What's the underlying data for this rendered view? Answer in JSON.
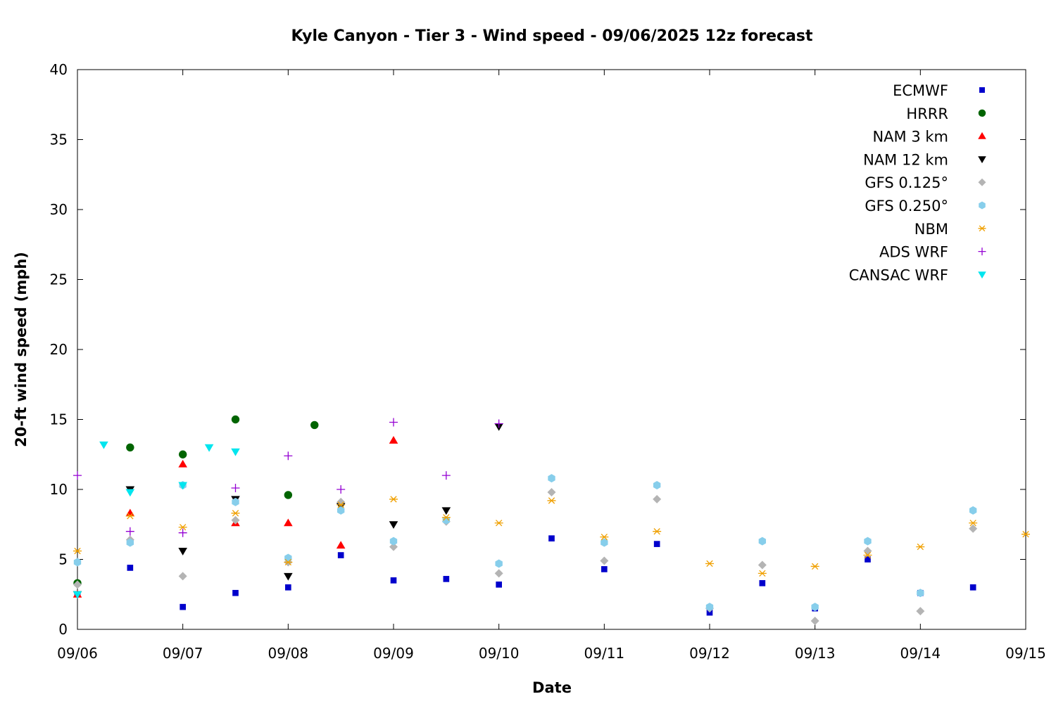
{
  "chart_data": {
    "type": "scatter",
    "title": "Kyle Canyon - Tier 3 - Wind speed - 09/06/2025 12z forecast",
    "xlabel": "Date",
    "ylabel": "20-ft wind speed (mph)",
    "x_unit": "days since 09/06 00:00",
    "xlim": [
      0,
      9
    ],
    "ylim": [
      0,
      40
    ],
    "xticks": [
      "09/06",
      "09/07",
      "09/08",
      "09/09",
      "09/10",
      "09/11",
      "09/12",
      "09/13",
      "09/14",
      "09/15"
    ],
    "yticks": [
      "0",
      "5",
      "10",
      "15",
      "20",
      "25",
      "30",
      "35",
      "40"
    ],
    "grid": false,
    "legend_position": "top-right",
    "series": [
      {
        "name": "ECMWF",
        "color": "#0000cc",
        "marker": "square",
        "x": [
          0.0,
          0.5,
          1.0,
          1.5,
          2.0,
          2.5,
          3.0,
          3.5,
          4.0,
          4.5,
          5.0,
          5.5,
          6.0,
          6.5,
          7.0,
          7.5,
          8.0,
          8.5
        ],
        "y": [
          2.5,
          4.4,
          1.6,
          2.6,
          3.0,
          5.3,
          3.5,
          3.6,
          3.2,
          6.5,
          4.3,
          6.1,
          1.2,
          3.3,
          1.5,
          5.0,
          2.6,
          3.0
        ]
      },
      {
        "name": "HRRR",
        "color": "#006400",
        "marker": "circle",
        "x": [
          0.0,
          0.5,
          1.0,
          1.5,
          2.0,
          2.25
        ],
        "y": [
          3.3,
          13.0,
          12.5,
          15.0,
          9.6,
          14.6
        ]
      },
      {
        "name": "NAM 3 km",
        "color": "#ff0000",
        "marker": "triangle-up",
        "x": [
          0.0,
          0.5,
          1.0,
          1.5,
          2.0,
          2.5,
          3.0
        ],
        "y": [
          2.5,
          8.3,
          11.8,
          7.6,
          7.6,
          6.0,
          13.5
        ]
      },
      {
        "name": "NAM 12 km",
        "color": "#000000",
        "marker": "triangle-down",
        "x": [
          0.0,
          0.5,
          1.0,
          1.5,
          2.0,
          2.5,
          3.0,
          3.5,
          4.0
        ],
        "y": [
          2.5,
          10.0,
          5.6,
          9.3,
          3.8,
          8.8,
          7.5,
          8.5,
          14.5
        ]
      },
      {
        "name": "GFS 0.125°",
        "color": "#b4b4b4",
        "marker": "diamond",
        "x": [
          0.0,
          0.5,
          1.0,
          1.5,
          2.0,
          2.5,
          3.0,
          3.5,
          4.0,
          4.5,
          5.0,
          5.5,
          6.0,
          6.5,
          7.0,
          7.5,
          8.0,
          8.5
        ],
        "y": [
          3.2,
          6.4,
          3.8,
          7.8,
          4.8,
          9.1,
          5.9,
          7.7,
          4.0,
          9.8,
          4.9,
          9.3,
          1.5,
          4.6,
          0.6,
          5.6,
          1.3,
          7.2
        ]
      },
      {
        "name": "GFS 0.250°",
        "color": "#87ceeb",
        "marker": "hexagon",
        "x": [
          0.0,
          0.5,
          1.0,
          1.5,
          2.0,
          2.5,
          3.0,
          3.5,
          4.0,
          4.5,
          5.0,
          5.5,
          6.0,
          6.5,
          7.0,
          7.5,
          8.0,
          8.5
        ],
        "y": [
          4.8,
          6.2,
          10.3,
          9.1,
          5.1,
          8.5,
          6.3,
          7.8,
          4.7,
          10.8,
          6.2,
          10.3,
          1.6,
          6.3,
          1.6,
          6.3,
          2.6,
          8.5
        ]
      },
      {
        "name": "NBM",
        "color": "#f0a000",
        "marker": "asterisk",
        "x": [
          0.0,
          0.5,
          1.0,
          1.5,
          2.0,
          2.5,
          3.0,
          3.5,
          4.0,
          4.5,
          5.0,
          5.5,
          6.0,
          6.5,
          7.0,
          7.5,
          8.0,
          8.5,
          9.0
        ],
        "y": [
          5.6,
          8.1,
          7.3,
          8.3,
          4.8,
          8.9,
          9.3,
          8.0,
          7.6,
          9.2,
          6.6,
          7.0,
          4.7,
          4.0,
          4.5,
          5.3,
          5.9,
          7.6,
          6.8
        ]
      },
      {
        "name": "ADS WRF",
        "color": "#9400d3",
        "marker": "plus",
        "x": [
          0.0,
          0.5,
          1.0,
          1.5,
          2.0,
          2.5,
          3.0,
          3.5,
          4.0
        ],
        "y": [
          11.0,
          7.0,
          6.9,
          10.1,
          12.4,
          10.0,
          14.8,
          11.0,
          14.7
        ]
      },
      {
        "name": "CANSAC WRF",
        "color": "#00e5ee",
        "marker": "triangle-down",
        "x": [
          0.0,
          0.25,
          0.5,
          1.0,
          1.25,
          1.5
        ],
        "y": [
          2.5,
          13.2,
          9.8,
          10.3,
          13.0,
          12.7
        ]
      }
    ]
  }
}
